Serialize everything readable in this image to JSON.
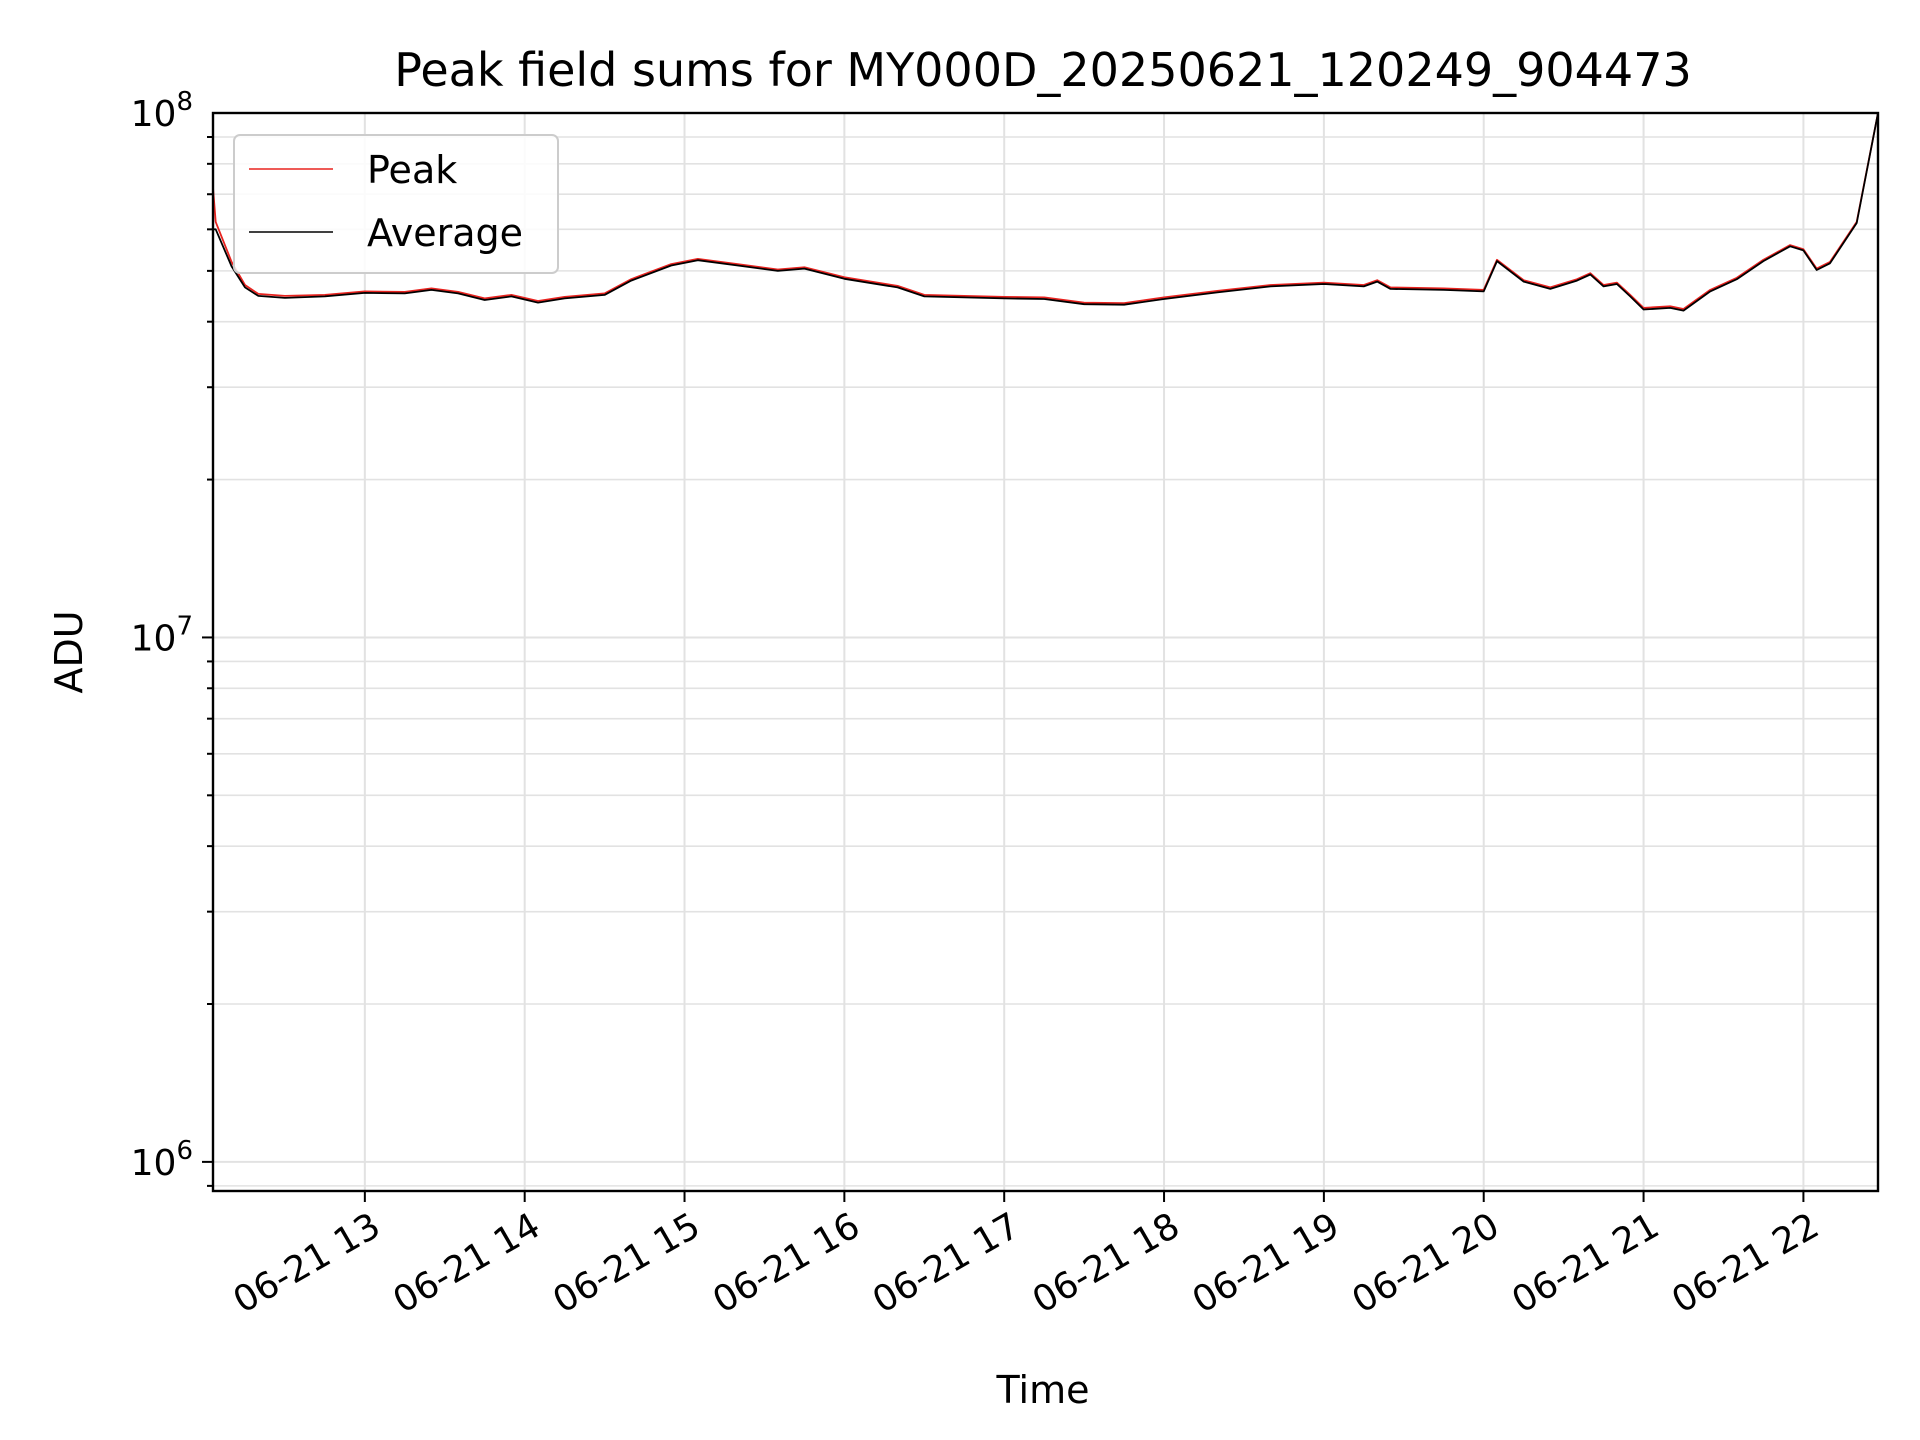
{
  "chart_data": {
    "type": "line",
    "title": "Peak field sums for MY000D_20250621_120249_904473",
    "xlabel": "Time",
    "ylabel": "ADU",
    "y_scale": "log",
    "ylim": [
      880000,
      100000000
    ],
    "xlim": [
      "2025-06-21 12:03",
      "2025-06-21 22:28"
    ],
    "x_ticks": [
      {
        "x": "2025-06-21 13:00",
        "label": "06-21 13"
      },
      {
        "x": "2025-06-21 14:00",
        "label": "06-21 14"
      },
      {
        "x": "2025-06-21 15:00",
        "label": "06-21 15"
      },
      {
        "x": "2025-06-21 16:00",
        "label": "06-21 16"
      },
      {
        "x": "2025-06-21 17:00",
        "label": "06-21 17"
      },
      {
        "x": "2025-06-21 18:00",
        "label": "06-21 18"
      },
      {
        "x": "2025-06-21 19:00",
        "label": "06-21 19"
      },
      {
        "x": "2025-06-21 20:00",
        "label": "06-21 20"
      },
      {
        "x": "2025-06-21 21:00",
        "label": "06-21 21"
      },
      {
        "x": "2025-06-21 22:00",
        "label": "06-21 22"
      }
    ],
    "y_ticks": [
      {
        "value": 1000000,
        "base": "10",
        "exp": "6"
      },
      {
        "value": 10000000,
        "base": "10",
        "exp": "7"
      },
      {
        "value": 100000000,
        "base": "10",
        "exp": "8"
      }
    ],
    "grid": true,
    "legend": {
      "position": "top-left"
    },
    "series": [
      {
        "name": "Peak",
        "color": "#e8231f",
        "points": [
          [
            "2025-06-21 12:03",
            1100000
          ],
          [
            "2025-06-21 12:03",
            72000000
          ],
          [
            "2025-06-21 12:04",
            62000000
          ],
          [
            "2025-06-21 12:10",
            52000000
          ],
          [
            "2025-06-21 12:15",
            47000000
          ],
          [
            "2025-06-21 12:20",
            45200000
          ],
          [
            "2025-06-21 12:30",
            44800000
          ],
          [
            "2025-06-21 12:45",
            45000000
          ],
          [
            "2025-06-21 13:00",
            45700000
          ],
          [
            "2025-06-21 13:15",
            45600000
          ],
          [
            "2025-06-21 13:25",
            46300000
          ],
          [
            "2025-06-21 13:35",
            45600000
          ],
          [
            "2025-06-21 13:45",
            44300000
          ],
          [
            "2025-06-21 13:55",
            45000000
          ],
          [
            "2025-06-21 14:05",
            43800000
          ],
          [
            "2025-06-21 14:15",
            44600000
          ],
          [
            "2025-06-21 14:30",
            45300000
          ],
          [
            "2025-06-21 14:40",
            48200000
          ],
          [
            "2025-06-21 14:55",
            51500000
          ],
          [
            "2025-06-21 15:05",
            52700000
          ],
          [
            "2025-06-21 15:20",
            51500000
          ],
          [
            "2025-06-21 15:35",
            50300000
          ],
          [
            "2025-06-21 15:45",
            50800000
          ],
          [
            "2025-06-21 16:00",
            48600000
          ],
          [
            "2025-06-21 16:20",
            46800000
          ],
          [
            "2025-06-21 16:30",
            45000000
          ],
          [
            "2025-06-21 16:45",
            44800000
          ],
          [
            "2025-06-21 17:00",
            44600000
          ],
          [
            "2025-06-21 17:15",
            44500000
          ],
          [
            "2025-06-21 17:30",
            43500000
          ],
          [
            "2025-06-21 17:45",
            43400000
          ],
          [
            "2025-06-21 18:00",
            44500000
          ],
          [
            "2025-06-21 18:20",
            45800000
          ],
          [
            "2025-06-21 18:40",
            47000000
          ],
          [
            "2025-06-21 19:00",
            47500000
          ],
          [
            "2025-06-21 19:15",
            47000000
          ],
          [
            "2025-06-21 19:20",
            48000000
          ],
          [
            "2025-06-21 19:25",
            46500000
          ],
          [
            "2025-06-21 19:45",
            46300000
          ],
          [
            "2025-06-21 20:00",
            46000000
          ],
          [
            "2025-06-21 20:05",
            52500000
          ],
          [
            "2025-06-21 20:15",
            48000000
          ],
          [
            "2025-06-21 20:25",
            46500000
          ],
          [
            "2025-06-21 20:35",
            48200000
          ],
          [
            "2025-06-21 20:40",
            49500000
          ],
          [
            "2025-06-21 20:45",
            47000000
          ],
          [
            "2025-06-21 20:50",
            47500000
          ],
          [
            "2025-06-21 20:55",
            45000000
          ],
          [
            "2025-06-21 21:00",
            42500000
          ],
          [
            "2025-06-21 21:10",
            42800000
          ],
          [
            "2025-06-21 21:15",
            42300000
          ],
          [
            "2025-06-21 21:25",
            46000000
          ],
          [
            "2025-06-21 21:35",
            48500000
          ],
          [
            "2025-06-21 21:45",
            52500000
          ],
          [
            "2025-06-21 21:55",
            56000000
          ],
          [
            "2025-06-21 22:00",
            55000000
          ],
          [
            "2025-06-21 22:05",
            50500000
          ],
          [
            "2025-06-21 22:10",
            52000000
          ],
          [
            "2025-06-21 22:20",
            62000000
          ],
          [
            "2025-06-21 22:28",
            100000000
          ]
        ]
      },
      {
        "name": "Average",
        "color": "#000000",
        "points": [
          [
            "2025-06-21 12:03",
            1100000
          ],
          [
            "2025-06-21 12:03",
            60000000
          ],
          [
            "2025-06-21 12:04",
            60000000
          ],
          [
            "2025-06-21 12:10",
            51000000
          ],
          [
            "2025-06-21 12:15",
            46500000
          ],
          [
            "2025-06-21 12:20",
            44800000
          ],
          [
            "2025-06-21 12:30",
            44400000
          ],
          [
            "2025-06-21 12:45",
            44700000
          ],
          [
            "2025-06-21 13:00",
            45400000
          ],
          [
            "2025-06-21 13:15",
            45300000
          ],
          [
            "2025-06-21 13:25",
            46000000
          ],
          [
            "2025-06-21 13:35",
            45300000
          ],
          [
            "2025-06-21 13:45",
            44000000
          ],
          [
            "2025-06-21 13:55",
            44700000
          ],
          [
            "2025-06-21 14:05",
            43500000
          ],
          [
            "2025-06-21 14:15",
            44300000
          ],
          [
            "2025-06-21 14:30",
            45000000
          ],
          [
            "2025-06-21 14:40",
            47900000
          ],
          [
            "2025-06-21 14:55",
            51200000
          ],
          [
            "2025-06-21 15:05",
            52400000
          ],
          [
            "2025-06-21 15:20",
            51200000
          ],
          [
            "2025-06-21 15:35",
            50000000
          ],
          [
            "2025-06-21 15:45",
            50500000
          ],
          [
            "2025-06-21 16:00",
            48300000
          ],
          [
            "2025-06-21 16:20",
            46500000
          ],
          [
            "2025-06-21 16:30",
            44700000
          ],
          [
            "2025-06-21 16:45",
            44500000
          ],
          [
            "2025-06-21 17:00",
            44300000
          ],
          [
            "2025-06-21 17:15",
            44200000
          ],
          [
            "2025-06-21 17:30",
            43200000
          ],
          [
            "2025-06-21 17:45",
            43100000
          ],
          [
            "2025-06-21 18:00",
            44200000
          ],
          [
            "2025-06-21 18:20",
            45500000
          ],
          [
            "2025-06-21 18:40",
            46700000
          ],
          [
            "2025-06-21 19:00",
            47200000
          ],
          [
            "2025-06-21 19:15",
            46700000
          ],
          [
            "2025-06-21 19:20",
            47700000
          ],
          [
            "2025-06-21 19:25",
            46200000
          ],
          [
            "2025-06-21 19:45",
            46000000
          ],
          [
            "2025-06-21 20:00",
            45700000
          ],
          [
            "2025-06-21 20:05",
            52200000
          ],
          [
            "2025-06-21 20:15",
            47700000
          ],
          [
            "2025-06-21 20:25",
            46200000
          ],
          [
            "2025-06-21 20:35",
            47900000
          ],
          [
            "2025-06-21 20:40",
            49200000
          ],
          [
            "2025-06-21 20:45",
            46700000
          ],
          [
            "2025-06-21 20:50",
            47200000
          ],
          [
            "2025-06-21 20:55",
            44700000
          ],
          [
            "2025-06-21 21:00",
            42200000
          ],
          [
            "2025-06-21 21:10",
            42500000
          ],
          [
            "2025-06-21 21:15",
            42000000
          ],
          [
            "2025-06-21 21:25",
            45700000
          ],
          [
            "2025-06-21 21:35",
            48200000
          ],
          [
            "2025-06-21 21:45",
            52200000
          ],
          [
            "2025-06-21 21:55",
            55700000
          ],
          [
            "2025-06-21 22:00",
            54700000
          ],
          [
            "2025-06-21 22:05",
            50200000
          ],
          [
            "2025-06-21 22:10",
            51700000
          ],
          [
            "2025-06-21 22:20",
            61700000
          ],
          [
            "2025-06-21 22:28",
            100000000
          ]
        ]
      }
    ]
  }
}
